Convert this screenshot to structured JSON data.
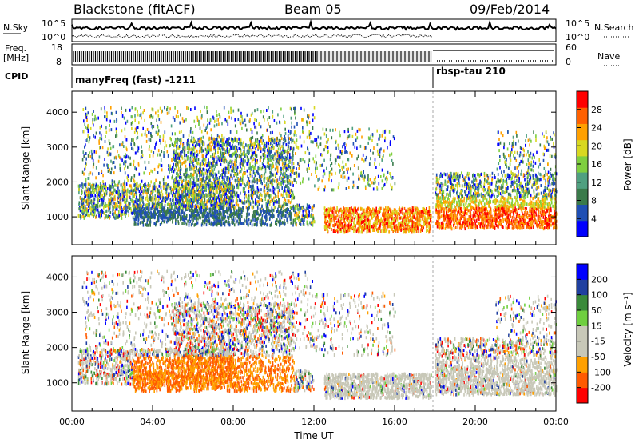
{
  "header": {
    "station": "Blackstone (fitACF)",
    "beam": "Beam 05",
    "date": "09/Feb/2014"
  },
  "side_labels": {
    "nsky": "N.Sky",
    "freq": "Freq.",
    "freq_unit": "[MHz]",
    "cpid": "CPID",
    "nsearch": "N.Search",
    "nave": "Nave",
    "noise_top": "10^5",
    "noise_bottom": "10^0",
    "freq_top": "18",
    "freq_bottom": "8",
    "nave_top": "60",
    "nave_bottom": "0"
  },
  "cpid_segments": [
    {
      "label": "manyFreq (fast) -1211",
      "start_hour": 0
    },
    {
      "label": "rbsp-tau 210",
      "start_hour": 18
    }
  ],
  "colors": {
    "power": [
      "#0000ff",
      "#1f4fb4",
      "#3a7a4a",
      "#4fa080",
      "#7fcf3f",
      "#d8d820",
      "#ffa000",
      "#ff6000",
      "#ff0000"
    ],
    "velocity": [
      "#ff0000",
      "#ff5a00",
      "#ffa000",
      "#c8c8b8",
      "#c8c8b8",
      "#6fcf3f",
      "#3a8a3a",
      "#2040a0",
      "#0000ff"
    ]
  },
  "chart_data": [
    {
      "type": "heatmap",
      "panel": "power",
      "xlabel": "",
      "ylabel": "Slant Range [km]",
      "xlim": [
        0,
        24
      ],
      "ylim": [
        200,
        4600
      ],
      "yticks": [
        "1000",
        "2000",
        "3000",
        "4000"
      ],
      "colorbar": {
        "label": "Power [dB]",
        "range": [
          0,
          32
        ],
        "ticks": [
          "4",
          "8",
          "12",
          "16",
          "20",
          "24",
          "28"
        ]
      }
    },
    {
      "type": "heatmap",
      "panel": "velocity",
      "xlabel": "Time UT",
      "ylabel": "Slant Range [km]",
      "xlim": [
        0,
        24
      ],
      "ylim": [
        200,
        4600
      ],
      "xticks": [
        "00:00",
        "04:00",
        "08:00",
        "12:00",
        "16:00",
        "20:00",
        "00:00"
      ],
      "yticks": [
        "1000",
        "2000",
        "3000",
        "4000"
      ],
      "colorbar": {
        "label": "Velocity [m s⁻¹]",
        "ticks": [
          "200",
          "100",
          "50",
          "15",
          "-15",
          "-50",
          "-100",
          "-200"
        ]
      }
    }
  ]
}
